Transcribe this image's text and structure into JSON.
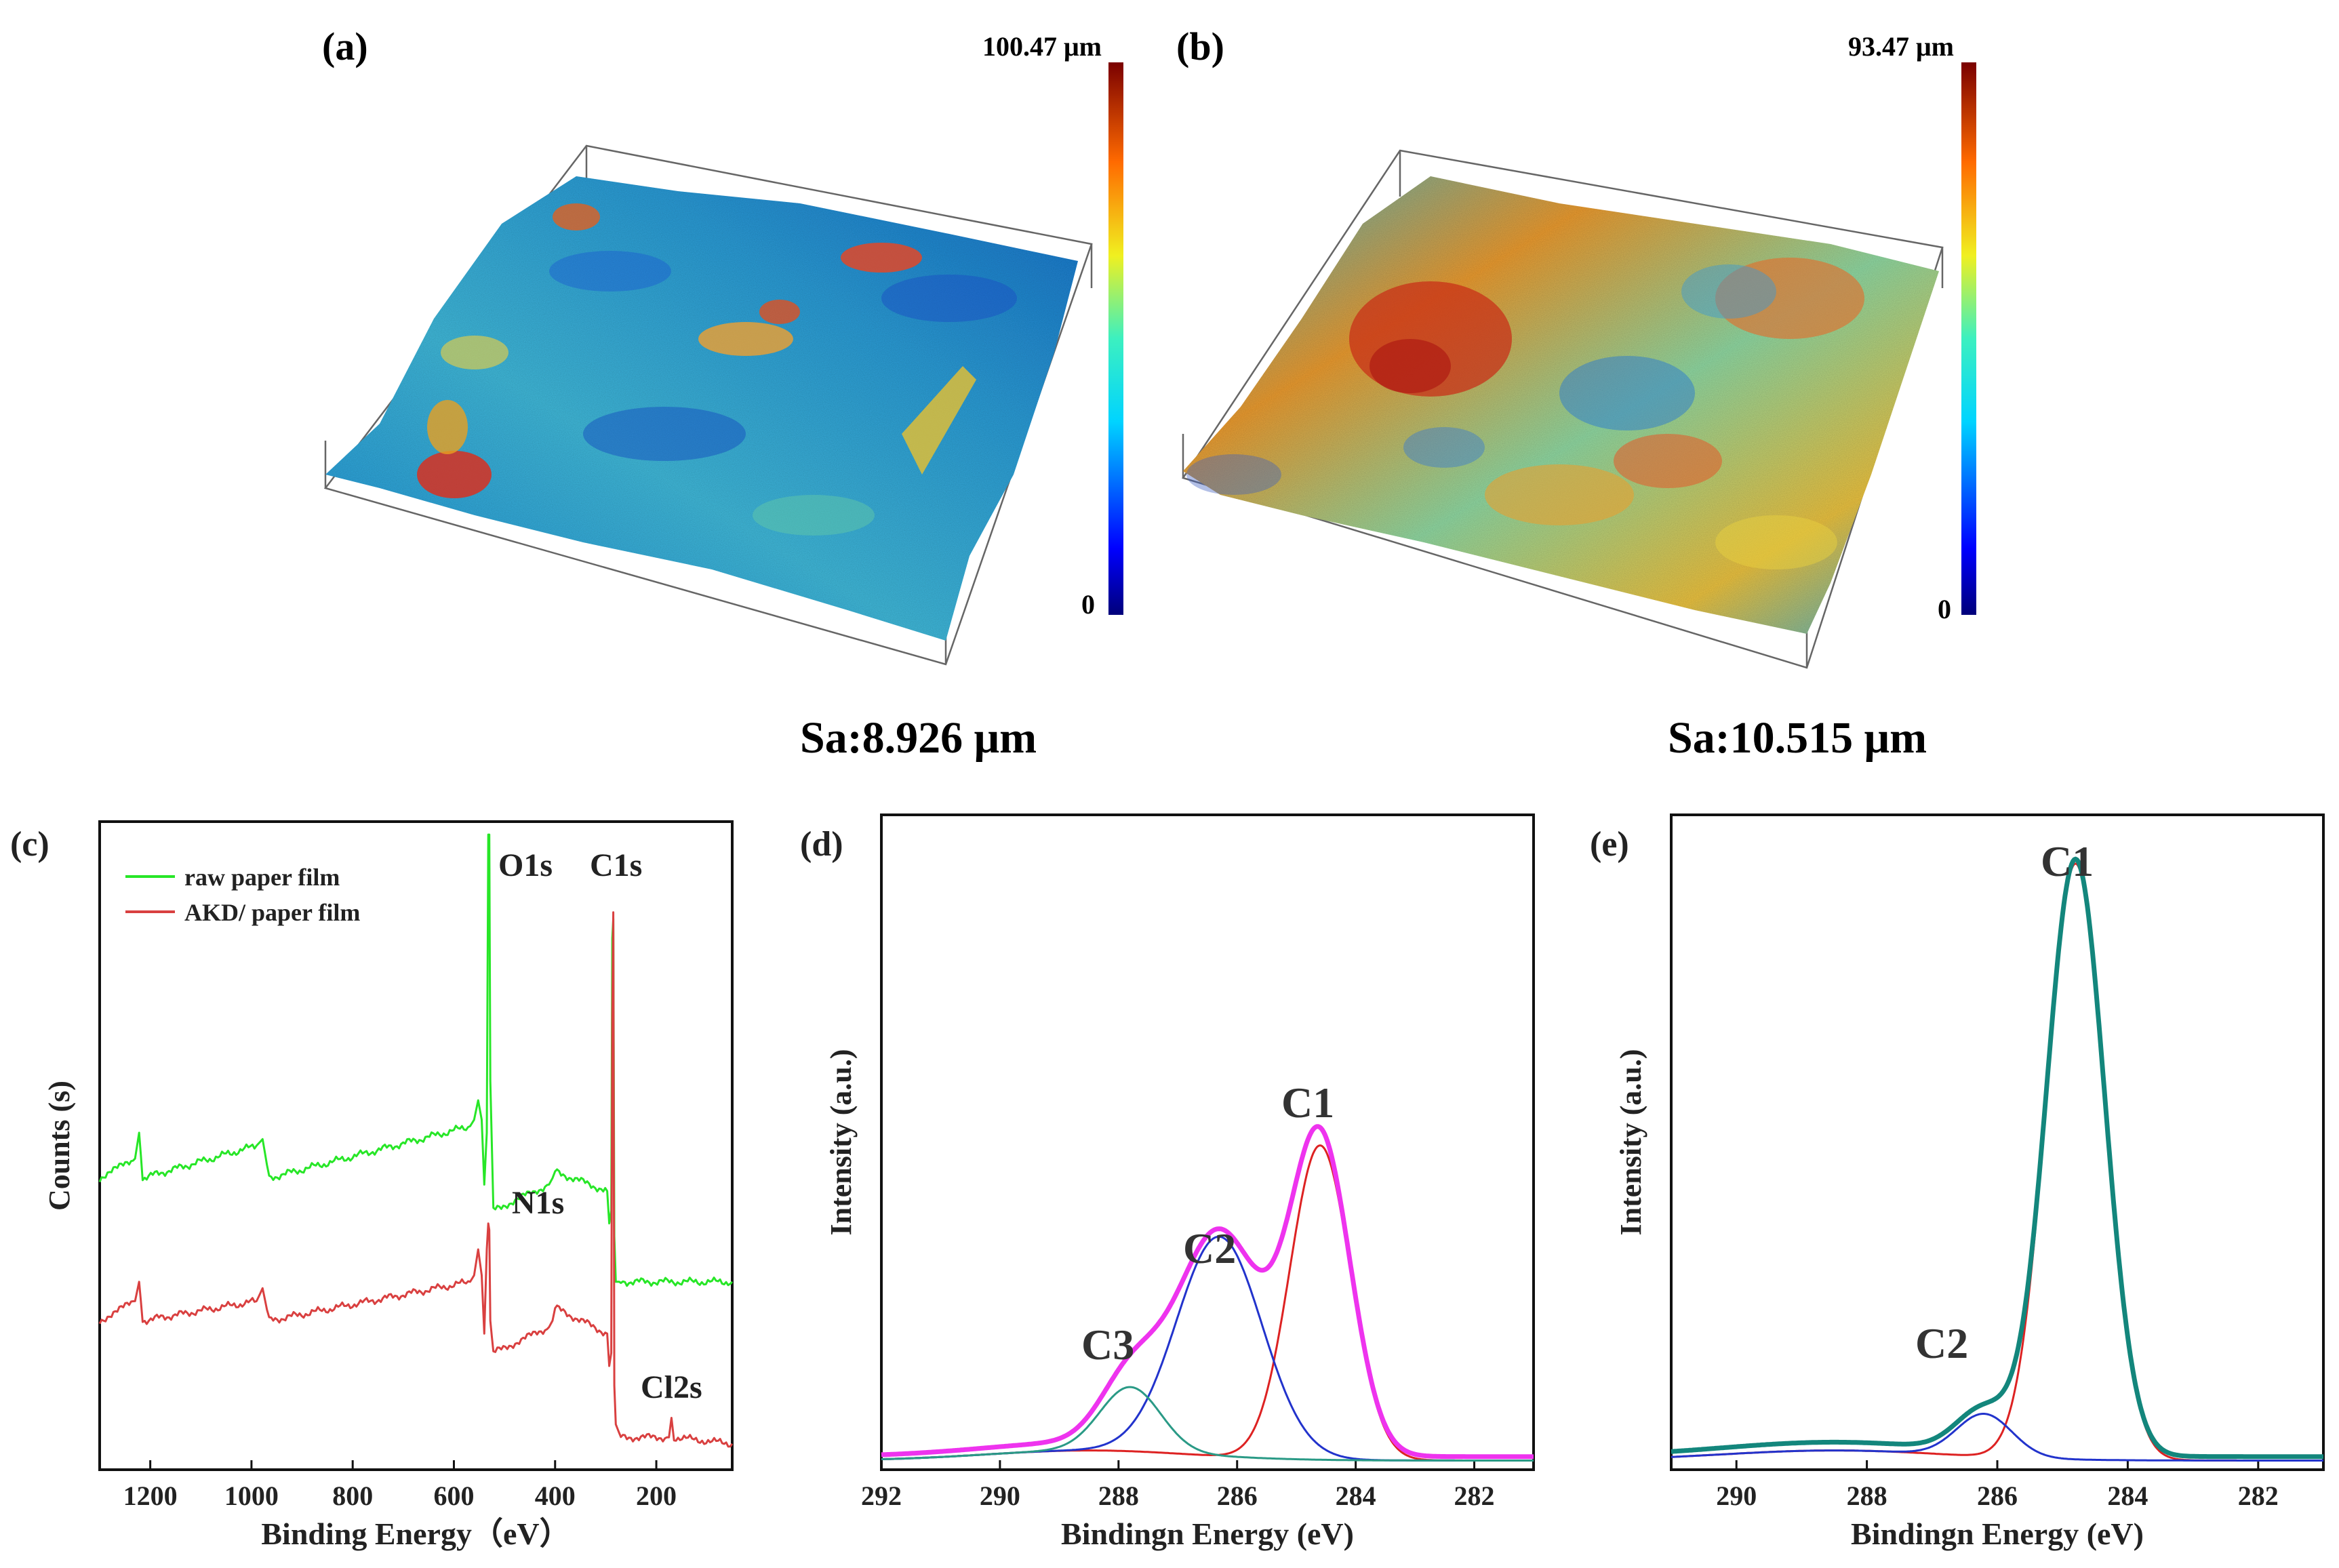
{
  "panel_a": {
    "tag": "(a)",
    "colorbar_max": "100.47 μm",
    "colorbar_min": "0",
    "sa": "Sa:8.926  μm"
  },
  "panel_b": {
    "tag": "(b)",
    "colorbar_max": "93.47 μm",
    "colorbar_min": "0",
    "sa": "Sa:10.515  μm"
  },
  "colors": {
    "raw": "#27e627",
    "akd": "#d94040",
    "envelope_d": "#ee33ee",
    "c1_fit": "#dd2222",
    "c2_fit": "#2233cc",
    "c3_fit": "#2a9a86",
    "envelope_e": "#13867c"
  },
  "chart_data": [
    {
      "id": "c",
      "tag": "(c)",
      "type": "line",
      "xlabel": "Binding Energy（eV）",
      "ylabel": "Counts (s)",
      "xlim": [
        1300,
        50
      ],
      "ylim": [
        0,
        100
      ],
      "xticks": [
        1200,
        1000,
        800,
        600,
        400,
        200
      ],
      "legend": [
        "raw paper film",
        "AKD/ paper film"
      ],
      "peak_labels": [
        "O1s",
        "C1s",
        "N1s",
        "Cl2s"
      ],
      "series": [
        {
          "name": "raw paper film",
          "x": [
            1300,
            1230,
            1222,
            1215,
            990,
            978,
            965,
            568,
            560,
            552,
            545,
            540,
            535,
            532,
            530,
            528,
            522,
            412,
            405,
            400,
            297,
            293,
            289,
            287,
            285,
            283,
            280,
            270,
            50
          ],
          "y": [
            45,
            48,
            52,
            45,
            50,
            51,
            45,
            53,
            54,
            57,
            54,
            44,
            52,
            98,
            98,
            60,
            40,
            44,
            45,
            46,
            43,
            38,
            40,
            82,
            85,
            36,
            29,
            29,
            29
          ]
        },
        {
          "name": "AKD/ paper film",
          "x": [
            1300,
            1230,
            1222,
            1215,
            990,
            978,
            965,
            568,
            560,
            552,
            545,
            540,
            535,
            532,
            530,
            528,
            522,
            412,
            405,
            400,
            297,
            293,
            289,
            287,
            285,
            283,
            280,
            270,
            175,
            170,
            165,
            50
          ],
          "y": [
            23,
            26,
            29,
            23,
            26,
            28,
            23,
            29,
            30,
            34,
            30,
            21,
            34,
            38,
            37,
            23,
            18,
            22,
            23,
            25,
            21,
            16,
            18,
            70,
            86,
            13,
            7,
            5,
            5,
            8,
            5,
            4
          ]
        }
      ]
    },
    {
      "id": "d",
      "tag": "(d)",
      "type": "line",
      "xlabel": "Bindingn Energy (eV)",
      "ylabel": "Intensity (a.u.)",
      "xlim": [
        292,
        281
      ],
      "ylim": [
        0,
        100
      ],
      "xticks": [
        292,
        290,
        288,
        286,
        284,
        282
      ],
      "peaks": [
        {
          "label": "C1",
          "center": 284.6,
          "height": 48,
          "fwhm": 1.2
        },
        {
          "label": "C2",
          "center": 286.3,
          "height": 33.5,
          "fwhm": 1.7
        },
        {
          "label": "C3",
          "center": 287.8,
          "height": 9.8,
          "fwhm": 1.2
        }
      ],
      "baseline": 2,
      "envelope_label": "sum"
    },
    {
      "id": "e",
      "tag": "(e)",
      "type": "line",
      "xlabel": "Bindingn Energy (eV)",
      "ylabel": "Intensity (a.u.)",
      "xlim": [
        291,
        281
      ],
      "ylim": [
        0,
        100
      ],
      "xticks": [
        290,
        288,
        286,
        284,
        282
      ],
      "peaks": [
        {
          "label": "C1",
          "center": 284.8,
          "height": 91,
          "fwhm": 1.05
        },
        {
          "label": "C2",
          "center": 286.2,
          "height": 6.5,
          "fwhm": 1.0
        }
      ],
      "baseline": 2,
      "envelope_label": "sum"
    }
  ]
}
